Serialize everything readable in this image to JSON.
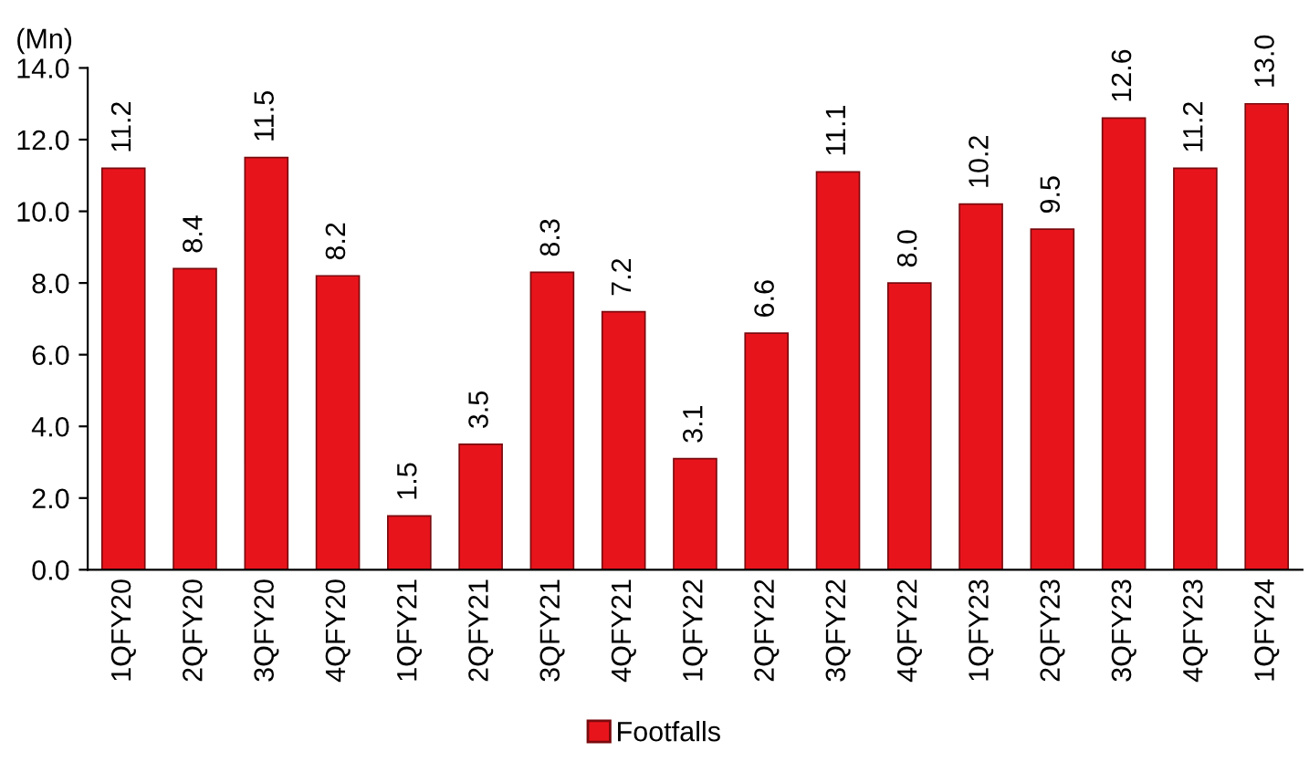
{
  "chart_data": {
    "type": "bar",
    "ylabel": "(Mn)",
    "categories": [
      "1QFY20",
      "2QFY20",
      "3QFY20",
      "4QFY20",
      "1QFY21",
      "2QFY21",
      "3QFY21",
      "4QFY21",
      "1QFY22",
      "2QFY22",
      "3QFY22",
      "4QFY22",
      "1QFY23",
      "2QFY23",
      "3QFY23",
      "4QFY23",
      "1QFY24"
    ],
    "series": [
      {
        "name": "Footfalls",
        "color": "#e8141c",
        "values": [
          11.2,
          8.4,
          11.5,
          8.2,
          1.5,
          3.5,
          8.3,
          7.2,
          3.1,
          6.6,
          11.1,
          8.0,
          10.2,
          9.5,
          12.6,
          11.2,
          13.0
        ],
        "value_labels": [
          "11.2",
          "8.4",
          "11.5",
          "8.2",
          "1.5",
          "3.5",
          "8.3",
          "7.2",
          "3.1",
          "6.6",
          "11.1",
          "8.0",
          "10.2",
          "9.5",
          "12.6",
          "11.2",
          "13.0"
        ]
      }
    ],
    "ylim": [
      0,
      14
    ],
    "yticks": [
      {
        "value": 0,
        "label": "0.0"
      },
      {
        "value": 2,
        "label": "2.0"
      },
      {
        "value": 4,
        "label": "4.0"
      },
      {
        "value": 6,
        "label": "6.0"
      },
      {
        "value": 8,
        "label": "8.0"
      },
      {
        "value": 10,
        "label": "10.0"
      },
      {
        "value": 12,
        "label": "12.0"
      },
      {
        "value": 14,
        "label": "14.0"
      }
    ],
    "grid": false,
    "legend": "bottom"
  }
}
